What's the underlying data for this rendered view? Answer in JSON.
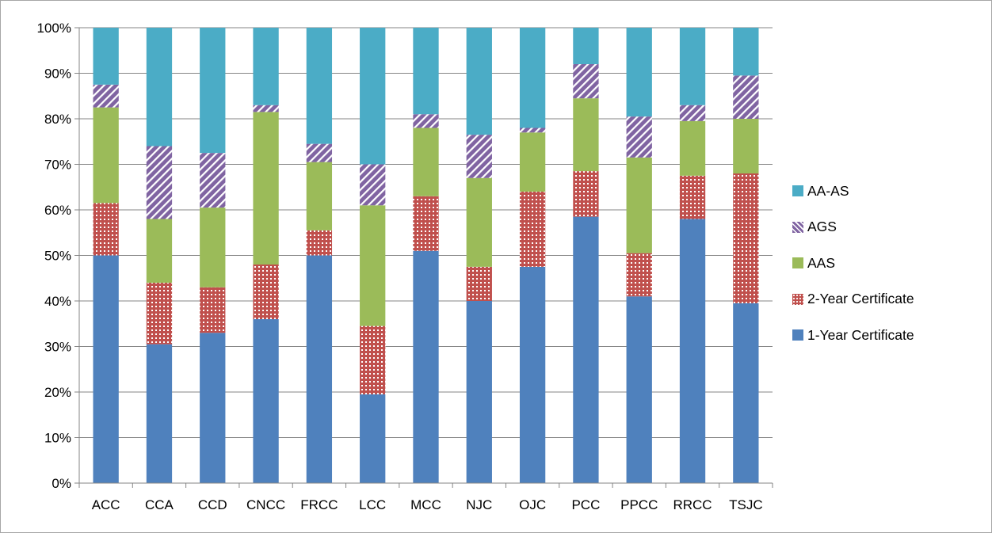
{
  "chart_data": {
    "type": "bar",
    "stacked": true,
    "percent": true,
    "categories": [
      "ACC",
      "CCA",
      "CCD",
      "CNCC",
      "FRCC",
      "LCC",
      "MCC",
      "NJC",
      "OJC",
      "PCC",
      "PPCC",
      "RRCC",
      "TSJC"
    ],
    "series": [
      {
        "name": "1-Year Certificate",
        "color": "#4f81bd",
        "pattern": "solid",
        "values": [
          50,
          30.5,
          33,
          36,
          50,
          19.5,
          51,
          40,
          47.5,
          58.5,
          41,
          58,
          39.5
        ]
      },
      {
        "name": "2-Year Certificate",
        "color": "#c0504d",
        "pattern": "dots",
        "values": [
          11.5,
          13.5,
          10,
          12,
          5.5,
          15,
          12,
          7.5,
          16.5,
          10,
          9.5,
          9.5,
          28.5
        ]
      },
      {
        "name": "AAS",
        "color": "#9bbb59",
        "pattern": "solid",
        "values": [
          21,
          14,
          17.5,
          33.5,
          15,
          26.5,
          15,
          19.5,
          13,
          16,
          21,
          12,
          12
        ]
      },
      {
        "name": "AGS",
        "color": "#8064a2",
        "pattern": "stripes",
        "values": [
          5,
          16,
          12,
          1.5,
          4,
          9,
          3,
          9.5,
          1,
          7.5,
          9,
          3.5,
          9.5
        ]
      },
      {
        "name": "AA-AS",
        "color": "#4bacc6",
        "pattern": "solid",
        "values": [
          12.5,
          26,
          27.5,
          17,
          25.5,
          30,
          19,
          23.5,
          22,
          8,
          19.5,
          17,
          10.5
        ]
      }
    ],
    "yticks": [
      "0%",
      "10%",
      "20%",
      "30%",
      "40%",
      "50%",
      "60%",
      "70%",
      "80%",
      "90%",
      "100%"
    ],
    "ylim": [
      0,
      100
    ],
    "legend_position": "right",
    "legend_order": [
      "AA-AS",
      "AGS",
      "AAS",
      "2-Year Certificate",
      "1-Year Certificate"
    ],
    "grid": true
  }
}
